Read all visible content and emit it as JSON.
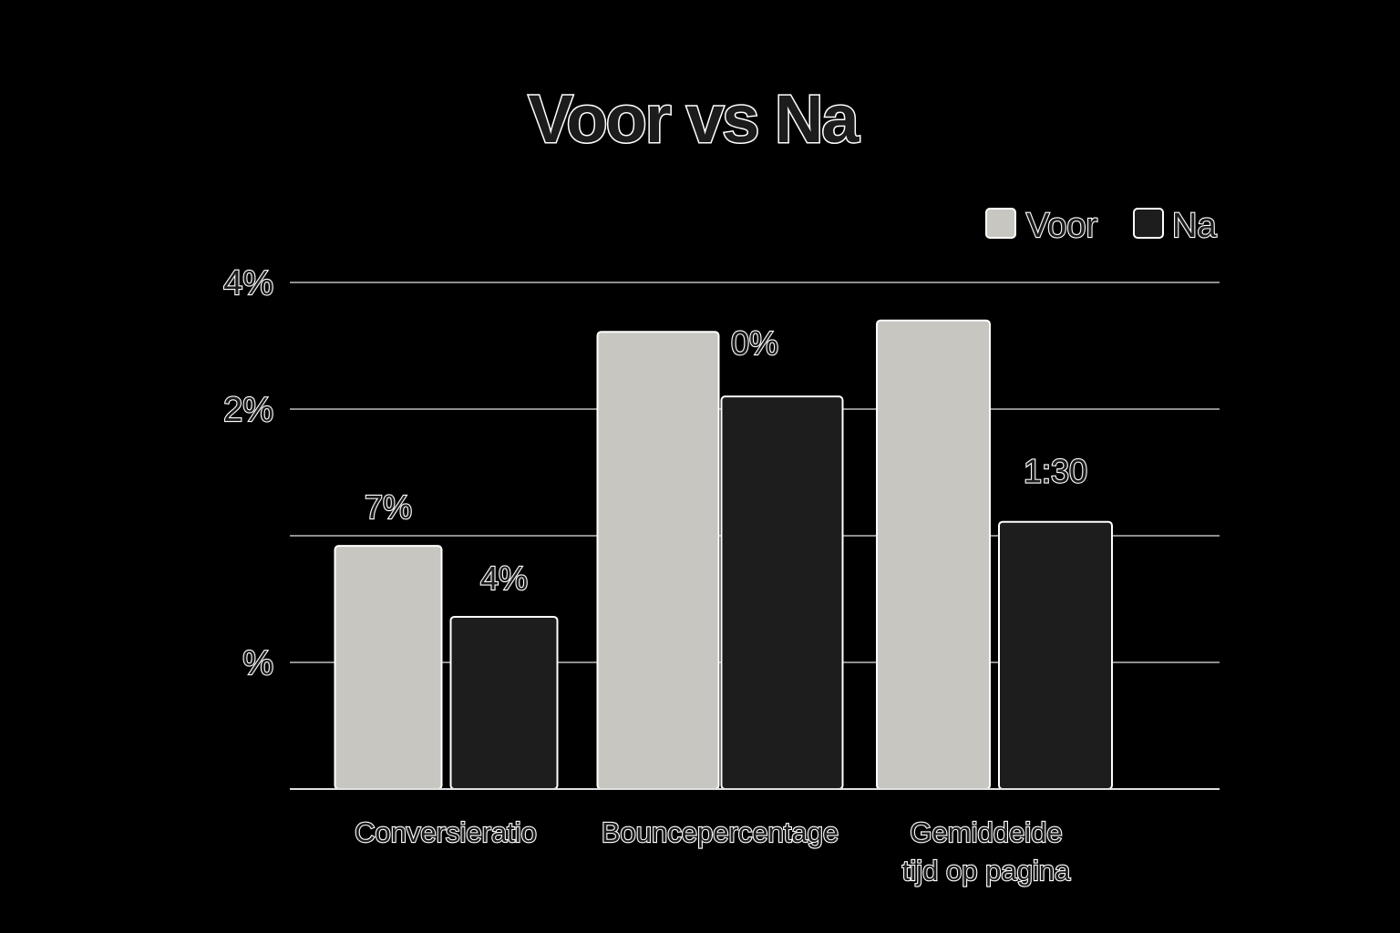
{
  "chart_data": {
    "type": "bar",
    "title": "Voor vs Na",
    "categories": [
      [
        "Conversieratio"
      ],
      [
        "Bouncepercentage"
      ],
      [
        "Gemiddeide",
        "tijd op pagina"
      ]
    ],
    "series": [
      {
        "name": "Voor",
        "color": "#c8c6c1",
        "values": [
          1.92,
          3.61,
          3.7
        ]
      },
      {
        "name": "Na",
        "color": "#1c1d1c",
        "values": [
          1.36,
          3.1,
          2.11
        ]
      }
    ],
    "value_labels": [
      [
        "7%",
        null,
        null
      ],
      [
        "4%",
        "0%",
        "1:30"
      ]
    ],
    "y_ticks": [
      {
        "value": 1,
        "label": "%"
      },
      {
        "value": 2,
        "label": ""
      },
      {
        "value": 3,
        "label": "2%"
      },
      {
        "value": 4,
        "label": "4%"
      }
    ],
    "ylim": [
      0,
      4
    ],
    "grid": true,
    "legend_position": "top-right",
    "xlabel": "",
    "ylabel": ""
  }
}
